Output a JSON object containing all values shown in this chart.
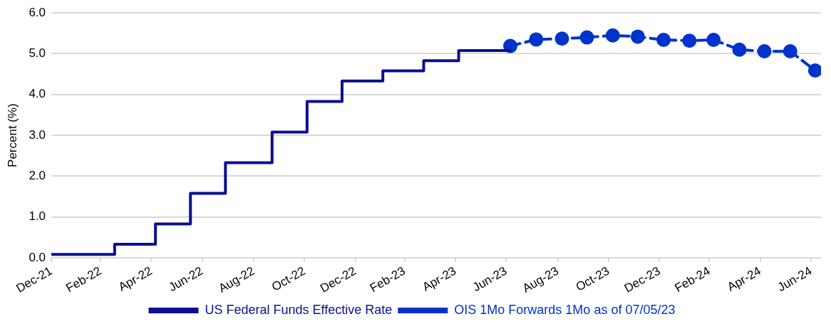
{
  "chart_data": {
    "type": "line",
    "ylabel": "Percent (%)",
    "xlim": [
      "2021-12-31",
      "2024-07-12"
    ],
    "xticks": [
      {
        "value": "2021-12-31",
        "label": "Dec-21"
      },
      {
        "value": "2022-02-28",
        "label": "Feb-22"
      },
      {
        "value": "2022-04-30",
        "label": "Apr-22"
      },
      {
        "value": "2022-06-30",
        "label": "Jun-22"
      },
      {
        "value": "2022-08-31",
        "label": "Aug-22"
      },
      {
        "value": "2022-10-31",
        "label": "Oct-22"
      },
      {
        "value": "2022-12-31",
        "label": "Dec-22"
      },
      {
        "value": "2023-02-28",
        "label": "Feb-23"
      },
      {
        "value": "2023-04-30",
        "label": "Apr-23"
      },
      {
        "value": "2023-06-30",
        "label": "Jun-23"
      },
      {
        "value": "2023-08-31",
        "label": "Aug-23"
      },
      {
        "value": "2023-10-31",
        "label": "Oct-23"
      },
      {
        "value": "2023-12-31",
        "label": "Dec-23"
      },
      {
        "value": "2024-02-29",
        "label": "Feb-24"
      },
      {
        "value": "2024-04-30",
        "label": "Apr-24"
      },
      {
        "value": "2024-06-30",
        "label": "Jun-24"
      }
    ],
    "ylim": [
      0,
      6
    ],
    "yticks": [
      {
        "value": 0,
        "label": "0.0"
      },
      {
        "value": 1,
        "label": "1.0"
      },
      {
        "value": 2,
        "label": "2.0"
      },
      {
        "value": 3,
        "label": "3.0"
      },
      {
        "value": 4,
        "label": "4.0"
      },
      {
        "value": 5,
        "label": "5.0"
      },
      {
        "value": 6,
        "label": "6.0"
      }
    ],
    "grid": "y",
    "legend": "bottom",
    "series": [
      {
        "name": "US Federal Funds Effective Rate",
        "type": "step",
        "color": "#0a0f91",
        "marker": "none",
        "line_style": "solid",
        "x": [
          "2021-12-31",
          "2022-03-17",
          "2022-05-05",
          "2022-06-16",
          "2022-07-28",
          "2022-09-22",
          "2022-11-03",
          "2022-12-15",
          "2023-02-02",
          "2023-03-23",
          "2023-05-04",
          "2023-07-05"
        ],
        "values": [
          0.08,
          0.33,
          0.83,
          1.58,
          2.33,
          3.08,
          3.83,
          4.33,
          4.58,
          4.83,
          5.08,
          5.08
        ]
      },
      {
        "name": "OIS 1Mo Forwards 1Mo as of 07/05/23",
        "type": "line",
        "color": "#0033cc",
        "marker": "circle",
        "line_style": "dashed",
        "x": [
          "2023-07-05",
          "2023-08-05",
          "2023-09-05",
          "2023-10-05",
          "2023-11-05",
          "2023-12-05",
          "2024-01-05",
          "2024-02-05",
          "2024-03-05",
          "2024-04-05",
          "2024-05-05",
          "2024-06-05",
          "2024-07-05"
        ],
        "values": [
          5.19,
          5.35,
          5.37,
          5.4,
          5.45,
          5.42,
          5.34,
          5.32,
          5.34,
          5.1,
          5.06,
          5.06,
          4.59
        ]
      }
    ]
  }
}
